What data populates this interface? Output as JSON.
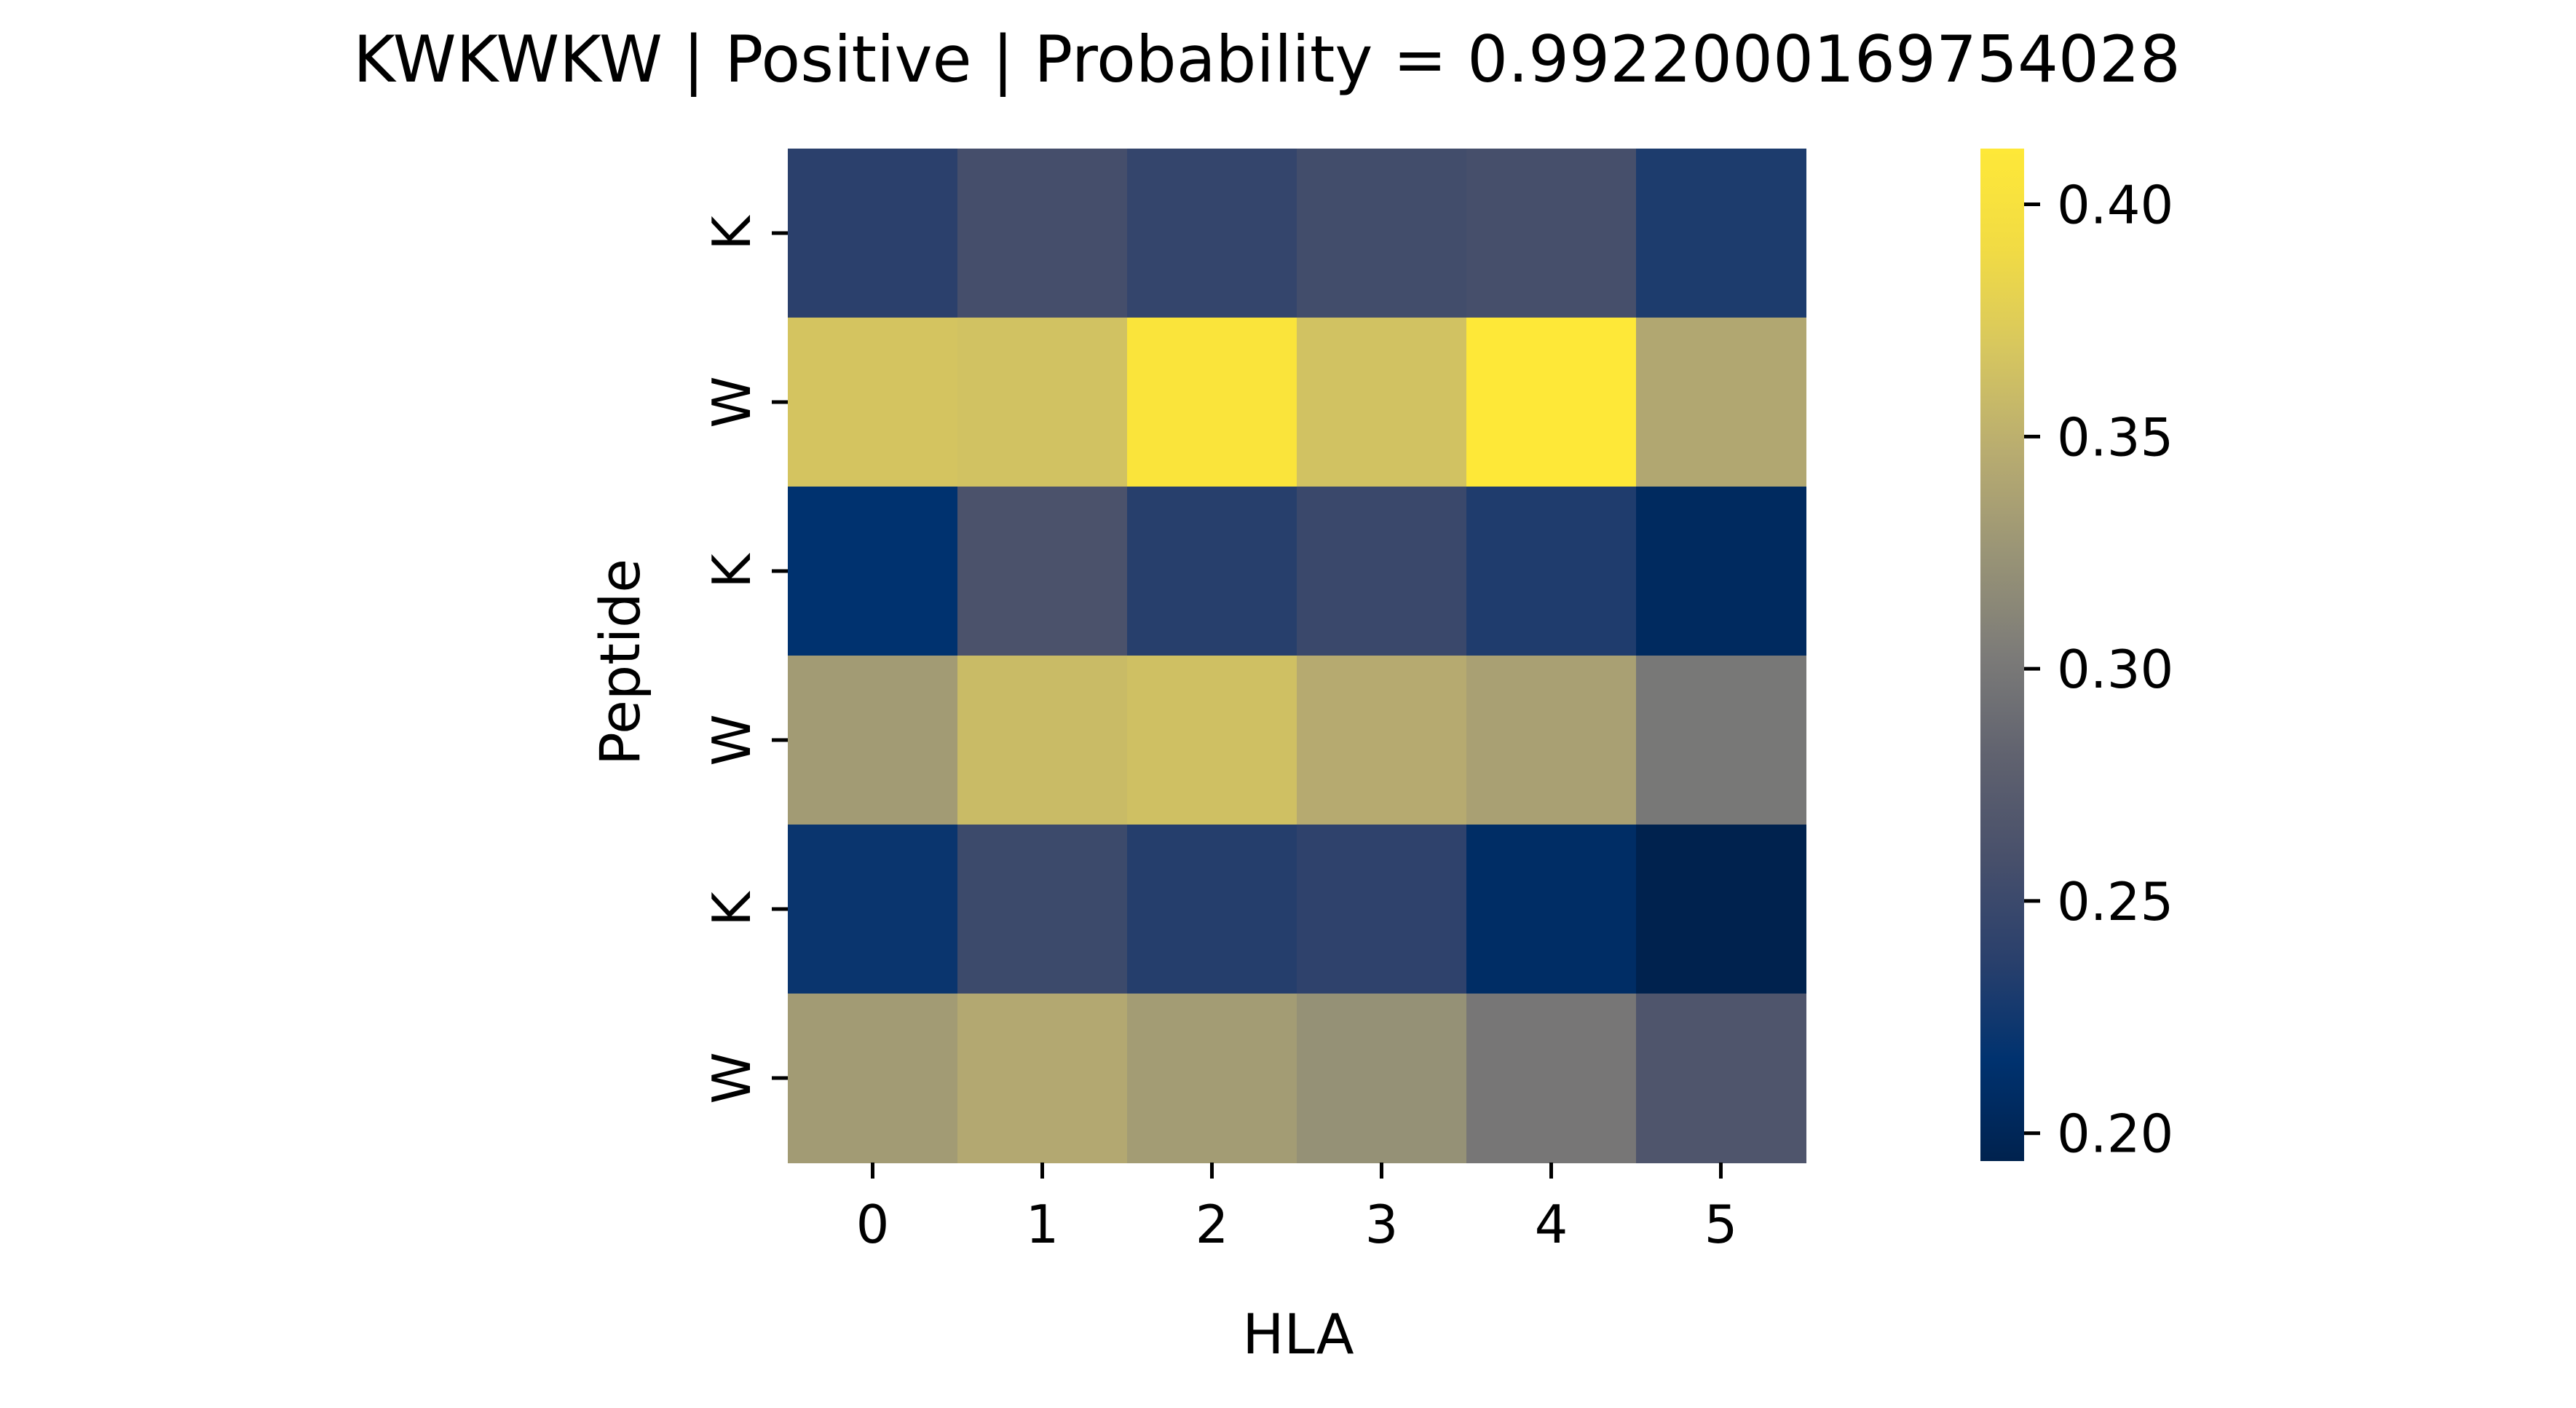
{
  "chart_data": {
    "type": "heatmap",
    "title": "KWKWKW | Positive | Probability = 0.9922000169754028",
    "xlabel": "HLA",
    "ylabel": "Peptide",
    "x_categories": [
      "0",
      "1",
      "2",
      "3",
      "4",
      "5"
    ],
    "y_categories": [
      "K",
      "W",
      "K",
      "W",
      "K",
      "W"
    ],
    "values": [
      [
        0.238,
        0.257,
        0.245,
        0.255,
        0.258,
        0.231
      ],
      [
        0.367,
        0.365,
        0.406,
        0.365,
        0.412,
        0.342
      ],
      [
        0.216,
        0.262,
        0.236,
        0.249,
        0.232,
        0.205
      ],
      [
        0.331,
        0.359,
        0.363,
        0.345,
        0.336,
        0.3
      ],
      [
        0.221,
        0.251,
        0.235,
        0.241,
        0.209,
        0.194
      ],
      [
        0.331,
        0.343,
        0.332,
        0.322,
        0.299,
        0.266
      ]
    ],
    "colorbar": {
      "colormap": "cividis",
      "vmin": 0.194,
      "vmax": 0.412,
      "ticks": [
        0.2,
        0.25,
        0.3,
        0.35,
        0.4
      ],
      "tick_labels": [
        "0.20",
        "0.25",
        "0.30",
        "0.35",
        "0.40"
      ]
    },
    "grid": false,
    "legend": "colorbar-right"
  }
}
